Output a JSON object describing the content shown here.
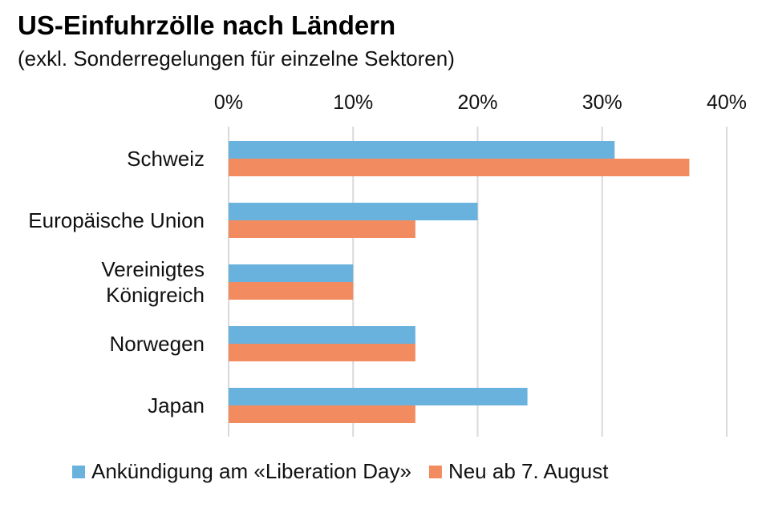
{
  "chart_data": {
    "type": "bar",
    "orientation": "horizontal",
    "title": "US-Einfuhrzölle nach Ländern",
    "subtitle": "(exkl. Sonderregelungen für einzelne Sektoren)",
    "categories": [
      [
        "Schweiz"
      ],
      [
        "Europäische Union"
      ],
      [
        "Vereinigtes",
        "Königreich"
      ],
      [
        "Norwegen"
      ],
      [
        "Japan"
      ]
    ],
    "series": [
      {
        "name": "Ankündigung am «Liberation Day»",
        "color": "#6ab2de",
        "values": [
          31,
          20,
          10,
          15,
          24
        ]
      },
      {
        "name": "Neu ab 7. August",
        "color": "#f28b5f",
        "values": [
          37,
          15,
          10,
          15,
          15
        ]
      }
    ],
    "xlim": [
      0,
      40
    ],
    "xticks": [
      0,
      10,
      20,
      30,
      40
    ],
    "xtick_labels": [
      "0%",
      "10%",
      "20%",
      "30%",
      "40%"
    ],
    "axis_position": "top",
    "grid": true,
    "legend_position": "bottom"
  }
}
